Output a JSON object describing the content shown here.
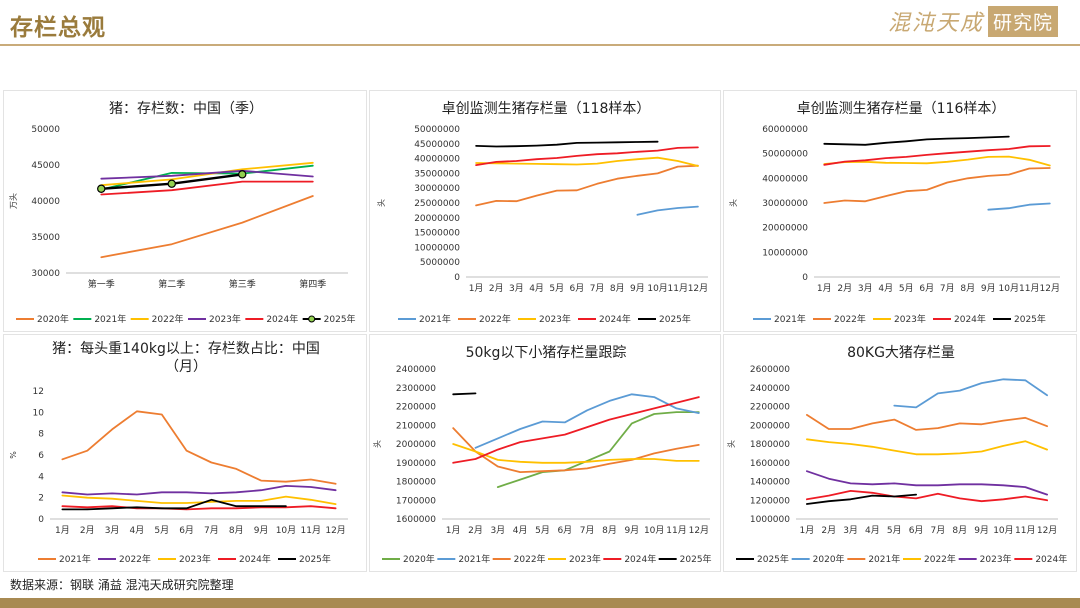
{
  "page": {
    "title": "存栏总观",
    "logo_main": "混沌天成",
    "logo_box": "研究院",
    "source": "数据来源：钢联 涌益 混沌天成研究院整理"
  },
  "colors": {
    "2020年": "#ed7d31",
    "2021年": "#5b9bd5",
    "2022年": "#ed7d31",
    "2023年": "#ffc000",
    "2024年": "#ee1c25",
    "2025年": "#000000",
    "q_2020年": "#ed7d31",
    "q_2021年": "#00b050",
    "q_2022年": "#ffc000",
    "q_2023年": "#7030a0",
    "q_2024年": "#ee1c25",
    "q_2025年": "#000000",
    "r_2021年": "#ed7d31",
    "r_2022年": "#7030a0",
    "r_2023年": "#ffc000",
    "r_2024年": "#ee1c25",
    "r_2025年": "#000000",
    "s_2020年": "#70ad47",
    "s_2021年": "#5b9bd5",
    "s_2022年": "#ed7d31",
    "s_2023年": "#ffc000",
    "s_2024年": "#ee1c25",
    "s_2025年": "#000000",
    "t_2025年": "#000000",
    "t_2020年": "#5b9bd5",
    "t_2021年": "#ed7d31",
    "t_2022年": "#ffc000",
    "t_2023年": "#7030a0",
    "t_2024年": "#ee1c25"
  },
  "chart_data": [
    {
      "id": "c1",
      "type": "line",
      "title": "猪：存栏数：中国（季）",
      "title2": "",
      "ylabel": "万头",
      "ylim": [
        30000,
        50000
      ],
      "yticks": [
        30000,
        35000,
        40000,
        45000,
        50000
      ],
      "yticklabels": [
        "30000",
        "35000",
        "40000",
        "45000",
        "50000"
      ],
      "categories": [
        "第一季",
        "第二季",
        "第三季",
        "第四季"
      ],
      "palette": "q_",
      "series": [
        {
          "name": "2020年",
          "values": [
            32200,
            34000,
            37000,
            40700
          ]
        },
        {
          "name": "2021年",
          "values": [
            41600,
            43900,
            43800,
            44900
          ]
        },
        {
          "name": "2022年",
          "values": [
            42200,
            43000,
            44400,
            45300
          ]
        },
        {
          "name": "2023年",
          "values": [
            43100,
            43500,
            44200,
            43400
          ]
        },
        {
          "name": "2024年",
          "values": [
            40900,
            41500,
            42700,
            42700
          ]
        },
        {
          "name": "2025年",
          "values": [
            41700,
            42400,
            43700,
            null
          ],
          "markers": true
        }
      ]
    },
    {
      "id": "c2",
      "type": "line",
      "title": "卓创监测生猪存栏量（118样本）",
      "title2": "",
      "ylabel": "头",
      "ylim": [
        0,
        50000000
      ],
      "yticks": [
        0,
        5000000,
        10000000,
        15000000,
        20000000,
        25000000,
        30000000,
        35000000,
        40000000,
        45000000,
        50000000
      ],
      "yticklabels": [
        "0",
        "5000000",
        "10000000",
        "15000000",
        "20000000",
        "25000000",
        "30000000",
        "35000000",
        "40000000",
        "45000000",
        "50000000"
      ],
      "categories": [
        "1月",
        "2月",
        "3月",
        "4月",
        "5月",
        "6月",
        "7月",
        "8月",
        "9月",
        "10月",
        "11月",
        "12月"
      ],
      "palette": "",
      "series": [
        {
          "name": "2021年",
          "values": [
            null,
            null,
            null,
            null,
            null,
            null,
            null,
            null,
            21000000,
            22500000,
            23300000,
            23800000
          ]
        },
        {
          "name": "2022年",
          "values": [
            24200000,
            25700000,
            25600000,
            27500000,
            29200000,
            29300000,
            31500000,
            33200000,
            34200000,
            35000000,
            37300000,
            37600000
          ]
        },
        {
          "name": "2023年",
          "values": [
            38500000,
            38400000,
            38300000,
            38200000,
            38100000,
            38000000,
            38300000,
            39200000,
            39800000,
            40300000,
            39200000,
            37500000
          ]
        },
        {
          "name": "2024年",
          "values": [
            37800000,
            38900000,
            39200000,
            39800000,
            40200000,
            40900000,
            41500000,
            41800000,
            42300000,
            42700000,
            43600000,
            43800000
          ]
        },
        {
          "name": "2025年",
          "values": [
            44300000,
            44100000,
            44200000,
            44400000,
            44700000,
            45300000,
            45400000,
            45500000,
            45600000,
            45700000,
            null,
            null
          ]
        }
      ]
    },
    {
      "id": "c3",
      "type": "line",
      "title": "卓创监测生猪存栏量（116样本）",
      "title2": "",
      "ylabel": "头",
      "ylim": [
        0,
        60000000
      ],
      "yticks": [
        0,
        10000000,
        20000000,
        30000000,
        40000000,
        50000000,
        60000000
      ],
      "yticklabels": [
        "0",
        "10000000",
        "20000000",
        "30000000",
        "40000000",
        "50000000",
        "60000000"
      ],
      "categories": [
        "1月",
        "2月",
        "3月",
        "4月",
        "5月",
        "6月",
        "7月",
        "8月",
        "9月",
        "10月",
        "11月",
        "12月"
      ],
      "palette": "",
      "series": [
        {
          "name": "2021年",
          "values": [
            null,
            null,
            null,
            null,
            null,
            null,
            null,
            null,
            27300000,
            27900000,
            29300000,
            29800000
          ]
        },
        {
          "name": "2022年",
          "values": [
            30000000,
            31000000,
            30700000,
            32800000,
            34800000,
            35300000,
            38300000,
            40000000,
            41000000,
            41500000,
            44000000,
            44200000
          ]
        },
        {
          "name": "2023年",
          "values": [
            45800000,
            46600000,
            46700000,
            46300000,
            46200000,
            46100000,
            46700000,
            47600000,
            48700000,
            48800000,
            47500000,
            45200000
          ]
        },
        {
          "name": "2024年",
          "values": [
            45500000,
            46800000,
            47300000,
            48200000,
            48700000,
            49500000,
            50200000,
            50800000,
            51400000,
            51900000,
            53000000,
            53100000
          ]
        },
        {
          "name": "2025年",
          "values": [
            54000000,
            53800000,
            53600000,
            54400000,
            55000000,
            55800000,
            56100000,
            56300000,
            56600000,
            56900000,
            null,
            null
          ]
        }
      ]
    },
    {
      "id": "c4",
      "type": "line",
      "title": "猪：每头重140kg以上：存栏数占比：中国",
      "title2": "（月）",
      "ylabel": "%",
      "ylim": [
        0,
        12
      ],
      "yticks": [
        0,
        2,
        4,
        6,
        8,
        10,
        12
      ],
      "yticklabels": [
        "0",
        "2",
        "4",
        "6",
        "8",
        "10",
        "12"
      ],
      "categories": [
        "1月",
        "2月",
        "3月",
        "4月",
        "5月",
        "6月",
        "7月",
        "8月",
        "9月",
        "10月",
        "11月",
        "12月"
      ],
      "palette": "r_",
      "series": [
        {
          "name": "2021年",
          "values": [
            5.6,
            6.4,
            8.4,
            10.1,
            9.8,
            6.4,
            5.3,
            4.7,
            3.6,
            3.5,
            3.7,
            3.3
          ]
        },
        {
          "name": "2022年",
          "values": [
            2.5,
            2.3,
            2.4,
            2.3,
            2.5,
            2.5,
            2.4,
            2.5,
            2.7,
            3.1,
            3.0,
            2.7
          ]
        },
        {
          "name": "2023年",
          "values": [
            2.2,
            2.0,
            1.9,
            1.7,
            1.5,
            1.5,
            1.6,
            1.7,
            1.7,
            2.1,
            1.8,
            1.4
          ]
        },
        {
          "name": "2024年",
          "values": [
            1.2,
            1.1,
            1.2,
            1.0,
            1.0,
            0.9,
            1.0,
            1.0,
            1.1,
            1.1,
            1.2,
            1.0
          ]
        },
        {
          "name": "2025年",
          "values": [
            0.9,
            0.9,
            1.0,
            1.1,
            1.0,
            1.0,
            1.8,
            1.2,
            1.2,
            1.2,
            null,
            null
          ]
        }
      ]
    },
    {
      "id": "c5",
      "type": "line",
      "title": "50kg以下小猪存栏量跟踪",
      "title2": "",
      "ylabel": "头",
      "ylim": [
        1600000,
        2400000
      ],
      "yticks": [
        1600000,
        1700000,
        1800000,
        1900000,
        2000000,
        2100000,
        2200000,
        2300000,
        2400000
      ],
      "yticklabels": [
        "1600000",
        "1700000",
        "1800000",
        "1900000",
        "2000000",
        "2100000",
        "2200000",
        "2300000",
        "2400000"
      ],
      "categories": [
        "1月",
        "2月",
        "3月",
        "4月",
        "5月",
        "6月",
        "7月",
        "8月",
        "9月",
        "10月",
        "11月",
        "12月"
      ],
      "palette": "s_",
      "series": [
        {
          "name": "2020年",
          "values": [
            null,
            null,
            1770000,
            1810000,
            1850000,
            1860000,
            1910000,
            1960000,
            2110000,
            2160000,
            2170000,
            2170000
          ]
        },
        {
          "name": "2021年",
          "values": [
            null,
            1980000,
            2030000,
            2080000,
            2120000,
            2115000,
            2180000,
            2230000,
            2265000,
            2250000,
            2190000,
            2165000
          ]
        },
        {
          "name": "2022年",
          "values": [
            2085000,
            1960000,
            1880000,
            1850000,
            1855000,
            1860000,
            1870000,
            1895000,
            1915000,
            1950000,
            1975000,
            1995000
          ]
        },
        {
          "name": "2023年",
          "values": [
            2000000,
            1960000,
            1915000,
            1905000,
            1900000,
            1900000,
            1905000,
            1915000,
            1920000,
            1920000,
            1910000,
            1910000
          ]
        },
        {
          "name": "2024年",
          "values": [
            1900000,
            1920000,
            1970000,
            2010000,
            2030000,
            2050000,
            2090000,
            2130000,
            2160000,
            2190000,
            2220000,
            2250000
          ]
        },
        {
          "name": "2025年",
          "values": [
            2265000,
            2270000,
            null,
            null,
            null,
            null,
            null,
            null,
            null,
            null,
            null,
            null
          ]
        }
      ]
    },
    {
      "id": "c6",
      "type": "line",
      "title": "80KG大猪存栏量",
      "title2": "",
      "ylabel": "头",
      "ylim": [
        1000000,
        2600000
      ],
      "yticks": [
        1000000,
        1200000,
        1400000,
        1600000,
        1800000,
        2000000,
        2200000,
        2400000,
        2600000
      ],
      "yticklabels": [
        "1000000",
        "1200000",
        "1400000",
        "1600000",
        "1800000",
        "2000000",
        "2200000",
        "2400000",
        "2600000"
      ],
      "categories": [
        "1月",
        "2月",
        "3月",
        "4月",
        "5月",
        "6月",
        "7月",
        "8月",
        "9月",
        "10月",
        "11月",
        "12月"
      ],
      "palette": "t_",
      "legend_order": [
        "2025年",
        "2020年",
        "2021年",
        "2022年",
        "2023年",
        "2024年"
      ],
      "series": [
        {
          "name": "2020年",
          "values": [
            null,
            null,
            null,
            null,
            2210000,
            2190000,
            2340000,
            2370000,
            2450000,
            2490000,
            2480000,
            2320000
          ]
        },
        {
          "name": "2021年",
          "values": [
            2110000,
            1960000,
            1960000,
            2020000,
            2060000,
            1950000,
            1970000,
            2020000,
            2010000,
            2050000,
            2080000,
            1990000
          ]
        },
        {
          "name": "2022年",
          "values": [
            1850000,
            1820000,
            1800000,
            1770000,
            1730000,
            1690000,
            1690000,
            1700000,
            1720000,
            1780000,
            1830000,
            1740000
          ]
        },
        {
          "name": "2023年",
          "values": [
            1510000,
            1430000,
            1380000,
            1370000,
            1380000,
            1360000,
            1360000,
            1370000,
            1370000,
            1360000,
            1340000,
            1260000
          ]
        },
        {
          "name": "2024年",
          "values": [
            1210000,
            1250000,
            1300000,
            1280000,
            1240000,
            1220000,
            1270000,
            1220000,
            1190000,
            1210000,
            1240000,
            1200000
          ]
        },
        {
          "name": "2025年",
          "values": [
            1160000,
            1190000,
            1210000,
            1250000,
            1240000,
            1260000,
            null,
            null,
            null,
            null,
            null,
            null
          ]
        }
      ]
    }
  ]
}
